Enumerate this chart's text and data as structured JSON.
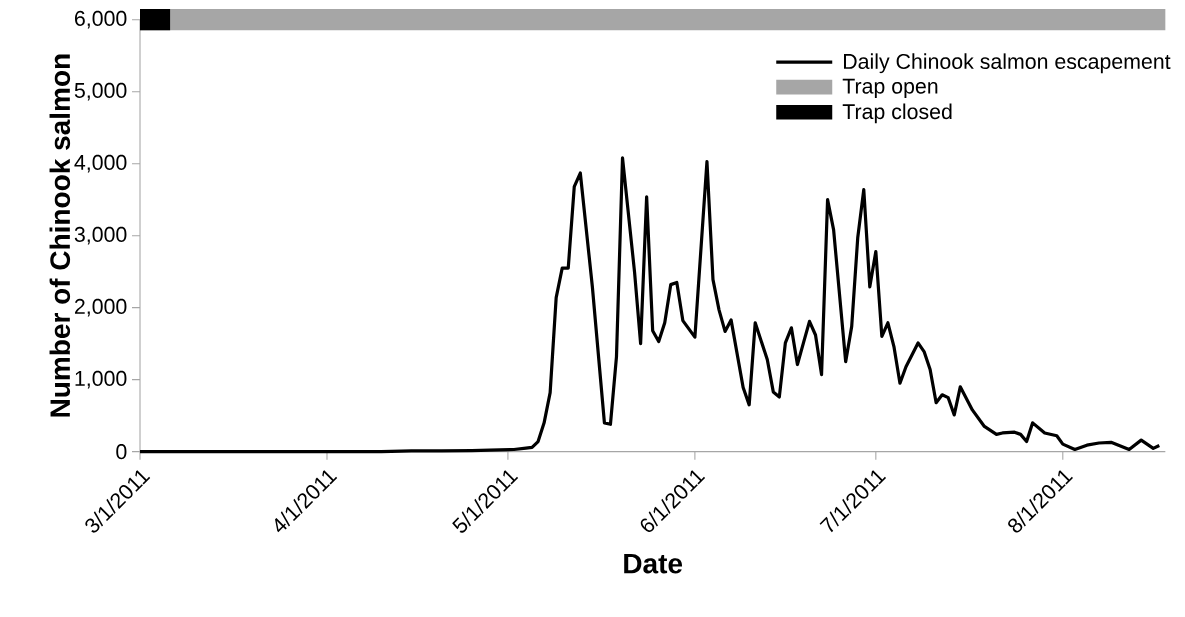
{
  "chart_data": {
    "type": "line",
    "xlabel": "Date",
    "ylabel": "Number of Chinook salmon",
    "xlim": [
      "2011-03-01",
      "2011-08-18"
    ],
    "xticks": [
      {
        "value": "2011-03-01",
        "label": "3/1/2011"
      },
      {
        "value": "2011-04-01",
        "label": "4/1/2011"
      },
      {
        "value": "2011-05-01",
        "label": "5/1/2011"
      },
      {
        "value": "2011-06-01",
        "label": "6/1/2011"
      },
      {
        "value": "2011-07-01",
        "label": "7/1/2011"
      },
      {
        "value": "2011-08-01",
        "label": "8/1/2011"
      }
    ],
    "ylim": [
      0,
      6000
    ],
    "yticks": [
      {
        "value": 0,
        "label": "0"
      },
      {
        "value": 1000,
        "label": "1,000"
      },
      {
        "value": 2000,
        "label": "2,000"
      },
      {
        "value": 3000,
        "label": "3,000"
      },
      {
        "value": 4000,
        "label": "4,000"
      },
      {
        "value": 5000,
        "label": "5,000"
      },
      {
        "value": 6000,
        "label": "6,000"
      }
    ],
    "legend": "top right",
    "grid": false,
    "marker": "none",
    "line_style": "solid",
    "series": [
      {
        "name": "Daily Chinook salmon escapement",
        "color": "#000000",
        "x": [
          "2011-03-01",
          "2011-03-21",
          "2011-04-10",
          "2011-04-15",
          "2011-04-20",
          "2011-04-25",
          "2011-04-28",
          "2011-05-02",
          "2011-05-04",
          "2011-05-05",
          "2011-05-06",
          "2011-05-07",
          "2011-05-08",
          "2011-05-09",
          "2011-05-10",
          "2011-05-11",
          "2011-05-12",
          "2011-05-13",
          "2011-05-15",
          "2011-05-17",
          "2011-05-18",
          "2011-05-19",
          "2011-05-20",
          "2011-05-22",
          "2011-05-23",
          "2011-05-24",
          "2011-05-25",
          "2011-05-26",
          "2011-05-27",
          "2011-05-28",
          "2011-05-29",
          "2011-05-30",
          "2011-06-01",
          "2011-06-03",
          "2011-06-04",
          "2011-06-05",
          "2011-06-06",
          "2011-06-07",
          "2011-06-09",
          "2011-06-10",
          "2011-06-11",
          "2011-06-13",
          "2011-06-14",
          "2011-06-15",
          "2011-06-16",
          "2011-06-17",
          "2011-06-18",
          "2011-06-19",
          "2011-06-20",
          "2011-06-21",
          "2011-06-22",
          "2011-06-23",
          "2011-06-24",
          "2011-06-26",
          "2011-06-27",
          "2011-06-28",
          "2011-06-29",
          "2011-06-30",
          "2011-07-01",
          "2011-07-02",
          "2011-07-03",
          "2011-07-04",
          "2011-07-05",
          "2011-07-06",
          "2011-07-08",
          "2011-07-09",
          "2011-07-10",
          "2011-07-11",
          "2011-07-12",
          "2011-07-13",
          "2011-07-14",
          "2011-07-15",
          "2011-07-17",
          "2011-07-19",
          "2011-07-21",
          "2011-07-22",
          "2011-07-24",
          "2011-07-25",
          "2011-07-26",
          "2011-07-27",
          "2011-07-29",
          "2011-07-31",
          "2011-08-01",
          "2011-08-03",
          "2011-08-05",
          "2011-08-07",
          "2011-08-09",
          "2011-08-12",
          "2011-08-14",
          "2011-08-16",
          "2011-08-17"
        ],
        "values": [
          0,
          0,
          0,
          10,
          10,
          15,
          20,
          30,
          50,
          60,
          140,
          400,
          820,
          2140,
          2550,
          2550,
          3680,
          3870,
          2290,
          400,
          380,
          1320,
          4080,
          2490,
          1500,
          3540,
          1680,
          1530,
          1790,
          2320,
          2350,
          1820,
          1590,
          4030,
          2390,
          1970,
          1670,
          1830,
          890,
          650,
          1790,
          1280,
          830,
          760,
          1510,
          1720,
          1210,
          1510,
          1810,
          1620,
          1070,
          3500,
          3080,
          1250,
          1740,
          2970,
          3640,
          2290,
          2780,
          1600,
          1790,
          1460,
          950,
          1180,
          1510,
          1390,
          1140,
          680,
          790,
          750,
          510,
          900,
          580,
          350,
          240,
          260,
          270,
          240,
          140,
          400,
          260,
          220,
          105,
          30,
          90,
          120,
          130,
          30,
          160,
          45,
          85
        ]
      },
      {
        "name": "Trap open",
        "color": "#a6a6a6",
        "x": [
          "2011-03-06",
          "2011-08-18"
        ],
        "values": [
          6000,
          6000
        ]
      },
      {
        "name": "Trap closed",
        "color": "#000000",
        "x": [
          "2011-03-01",
          "2011-03-06"
        ],
        "values": [
          6000,
          6000
        ]
      }
    ]
  }
}
